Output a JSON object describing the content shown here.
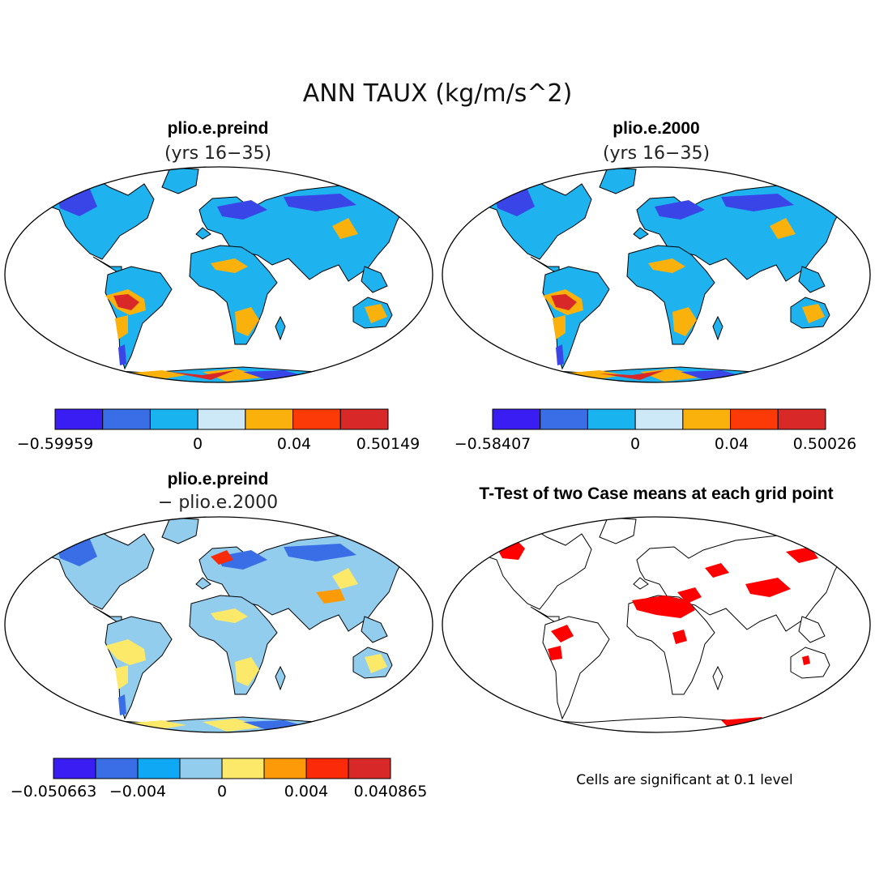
{
  "figure": {
    "title": "ANN TAUX (kg/m/s^2)",
    "note": "Cells are significant at 0.1 level"
  },
  "panels": [
    {
      "id": "preind",
      "title": "plio.e.preind",
      "subtitle": "(yrs 16−35)",
      "colorbar": {
        "colors": [
          "#3a1df2",
          "#3a6ee6",
          "#19b3f0",
          "#cde9f7",
          "#fbb10b",
          "#fb3a08",
          "#d82828"
        ],
        "tick_labels": [
          "−0.59959",
          "0",
          "0.04",
          "0.50149"
        ]
      }
    },
    {
      "id": "y2000",
      "title": "plio.e.2000",
      "subtitle": "(yrs 16−35)",
      "colorbar": {
        "colors": [
          "#3a1df2",
          "#3a6ee6",
          "#19b3f0",
          "#cde9f7",
          "#fbb10b",
          "#fb3a08",
          "#d82828"
        ],
        "tick_labels": [
          "−0.58407",
          "0",
          "0.04",
          "0.50026"
        ]
      }
    },
    {
      "id": "diff",
      "title": "plio.e.preind",
      "subtitle": "− plio.e.2000",
      "colorbar": {
        "colors": [
          "#3a1df2",
          "#3a6ee6",
          "#0ea8f4",
          "#92cdee",
          "#fce96a",
          "#fd9a07",
          "#fb2a08",
          "#d82828"
        ],
        "tick_labels": [
          "−0.050663",
          "−0.004",
          "0",
          "0.004",
          "0.040865"
        ]
      }
    },
    {
      "id": "ttest",
      "title": "T-Test of two Case means at each grid point",
      "significant_color": "#ff0000"
    }
  ]
}
